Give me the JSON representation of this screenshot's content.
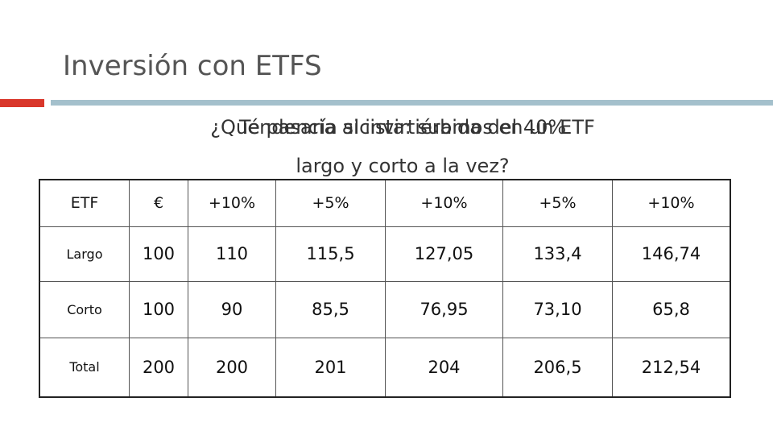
{
  "header": {
    "title": "Inversión con ETFS"
  },
  "overlay_texts": [
    "Tendencia alcista: subida del 40%"
  ],
  "question": [
    "¿Qué pasaría si invirtiéramos en un ETF",
    "largo y corto a la vez?"
  ],
  "table": {
    "header": [
      "ETF",
      "€",
      "+10%",
      "+5%",
      "+10%",
      "+5%",
      "+10%"
    ],
    "rows": [
      [
        "Largo",
        "100",
        "110",
        "115,5",
        "127,05",
        "133,4",
        "146,74"
      ],
      [
        "Corto",
        "100",
        "90",
        "85,5",
        "76,95",
        "73,10",
        "65,8"
      ],
      [
        "Total",
        "200",
        "200",
        "201",
        "204",
        "206,5",
        "212,54"
      ]
    ]
  }
}
